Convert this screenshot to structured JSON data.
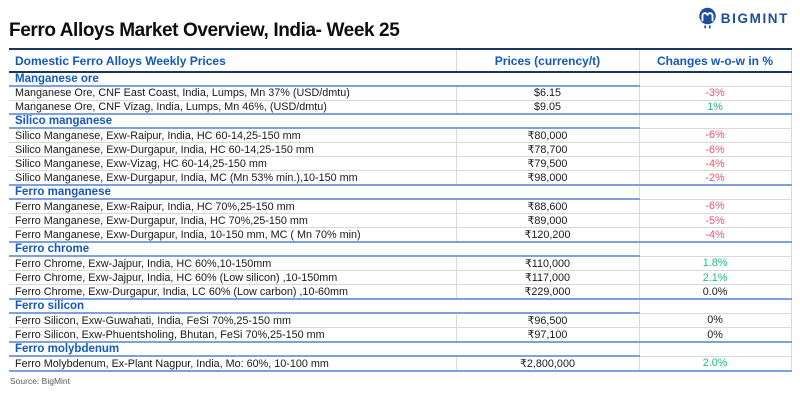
{
  "page": {
    "title": "Ferro Alloys Market Overview, India- Week 25",
    "source": "Source: BigMint"
  },
  "logo": {
    "text": "BIGMINT",
    "icon": "bigmint-m-badge-icon"
  },
  "colors": {
    "brand_blue": "#1B4F9C",
    "header_blue": "#1459B8",
    "navy_rule": "#17375E",
    "section_rule": "#7CA1DB",
    "grid_gray": "#D9D9D9",
    "up_green": "#21BE83",
    "down_red": "#E4546C",
    "text": "#1A1A1A"
  },
  "table": {
    "headers": [
      "Domestic Ferro Alloys Weekly Prices",
      "Prices (currency/t)",
      "Changes w-o-w in %"
    ],
    "sections": [
      {
        "name": "Manganese ore",
        "rows": [
          {
            "product": "Manganese Ore, CNF East Coast, India, Lumps, Mn 37% (USD/dmtu)",
            "price": "$6.15",
            "change": "-3%",
            "trend": "down"
          },
          {
            "product": "Manganese Ore, CNF Vizag, India, Lumps, Mn 46%, (USD/dmtu)",
            "price": "$9.05",
            "change": "1%",
            "trend": "up"
          }
        ]
      },
      {
        "name": "Silico manganese",
        "rows": [
          {
            "product": "Silico Manganese, Exw-Raipur, India, HC 60-14,25-150 mm",
            "price": "₹80,000",
            "change": "-6%",
            "trend": "down"
          },
          {
            "product": "Silico Manganese, Exw-Durgapur, India, HC 60-14,25-150 mm",
            "price": "₹78,700",
            "change": "-6%",
            "trend": "down"
          },
          {
            "product": "Silico Manganese, Exw-Vizag, HC 60-14,25-150 mm",
            "price": "₹79,500",
            "change": "-4%",
            "trend": "down"
          },
          {
            "product": "Silico Manganese, Exw-Durgapur, India, MC (Mn 53% min.),10-150 mm",
            "price": "₹98,000",
            "change": "-2%",
            "trend": "down"
          }
        ]
      },
      {
        "name": "Ferro manganese",
        "rows": [
          {
            "product": "Ferro Manganese, Exw-Raipur, India, HC 70%,25-150 mm",
            "price": "₹88,600",
            "change": "-6%",
            "trend": "down"
          },
          {
            "product": "Ferro Manganese, Exw-Durgapur, India, HC 70%,25-150 mm",
            "price": "₹89,000",
            "change": "-5%",
            "trend": "down"
          },
          {
            "product": "Ferro Manganese, Exw-Durgapur, India, 10-150 mm, MC ( Mn 70% min)",
            "price": "₹120,200",
            "change": "-4%",
            "trend": "down"
          }
        ]
      },
      {
        "name": "Ferro chrome",
        "rows": [
          {
            "product": "Ferro Chrome, Exw-Jajpur, India, HC 60%,10-150mm",
            "price": "₹110,000",
            "change": "1.8%",
            "trend": "up"
          },
          {
            "product": "Ferro Chrome, Exw-Jajpur, India, HC 60% (Low silicon) ,10-150mm",
            "price": "₹117,000",
            "change": "2.1%",
            "trend": "up"
          },
          {
            "product": "Ferro Chrome, Exw-Durgapur, India, LC 60% (Low carbon) ,10-60mm",
            "price": "₹229,000",
            "change": "0.0%",
            "trend": "flat"
          }
        ]
      },
      {
        "name": "Ferro silicon",
        "rows": [
          {
            "product": "Ferro Silicon, Exw-Guwahati, India, FeSi 70%,25-150 mm",
            "price": "₹96,500",
            "change": "0%",
            "trend": "flat"
          },
          {
            "product": "Ferro Silicon, Exw-Phuentsholing, Bhutan, FeSi 70%,25-150 mm",
            "price": "₹97,100",
            "change": "0%",
            "trend": "flat"
          }
        ]
      },
      {
        "name": "Ferro molybdenum",
        "rows": [
          {
            "product": "Ferro Molybdenum, Ex-Plant Nagpur, India, Mo: 60%, 10-100 mm",
            "price": "₹2,800,000",
            "change": "2.0%",
            "trend": "up"
          }
        ]
      }
    ]
  }
}
